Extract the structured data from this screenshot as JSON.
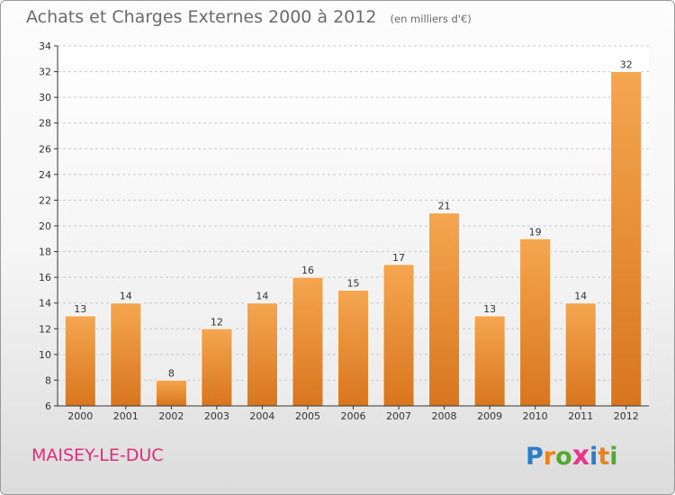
{
  "title": "Achats et Charges Externes 2000 à 2012",
  "subtitle": "(en milliers d'€)",
  "place": "MAISEY-LE-DUC",
  "brand": {
    "text": "Proxiti",
    "letter_colors": [
      "#2a7fc9",
      "#e8831d",
      "#56a92e",
      "#e8368a",
      "#2a7fc9",
      "#e8831d",
      "#56a92e"
    ]
  },
  "colors": {
    "bar_light": "#f5a650",
    "bar_dark": "#d8761e",
    "axis": "#333333",
    "grid": "#c8c8c8",
    "text": "#333333"
  },
  "chart_data": {
    "type": "bar",
    "categories": [
      "2000",
      "2001",
      "2002",
      "2003",
      "2004",
      "2005",
      "2006",
      "2007",
      "2008",
      "2009",
      "2010",
      "2011",
      "2012"
    ],
    "values": [
      13,
      14,
      8,
      12,
      14,
      16,
      15,
      17,
      21,
      13,
      19,
      14,
      32
    ],
    "data_labels": [
      "13",
      "14",
      "8",
      "12",
      "14",
      "16",
      "15",
      "17",
      "21",
      "13",
      "19",
      "14",
      "32"
    ],
    "ylim": [
      6,
      34
    ],
    "yticks": [
      6,
      8,
      10,
      12,
      14,
      16,
      18,
      20,
      22,
      24,
      26,
      28,
      30,
      32,
      34
    ],
    "grid": true,
    "xlabel": "",
    "ylabel": ""
  }
}
